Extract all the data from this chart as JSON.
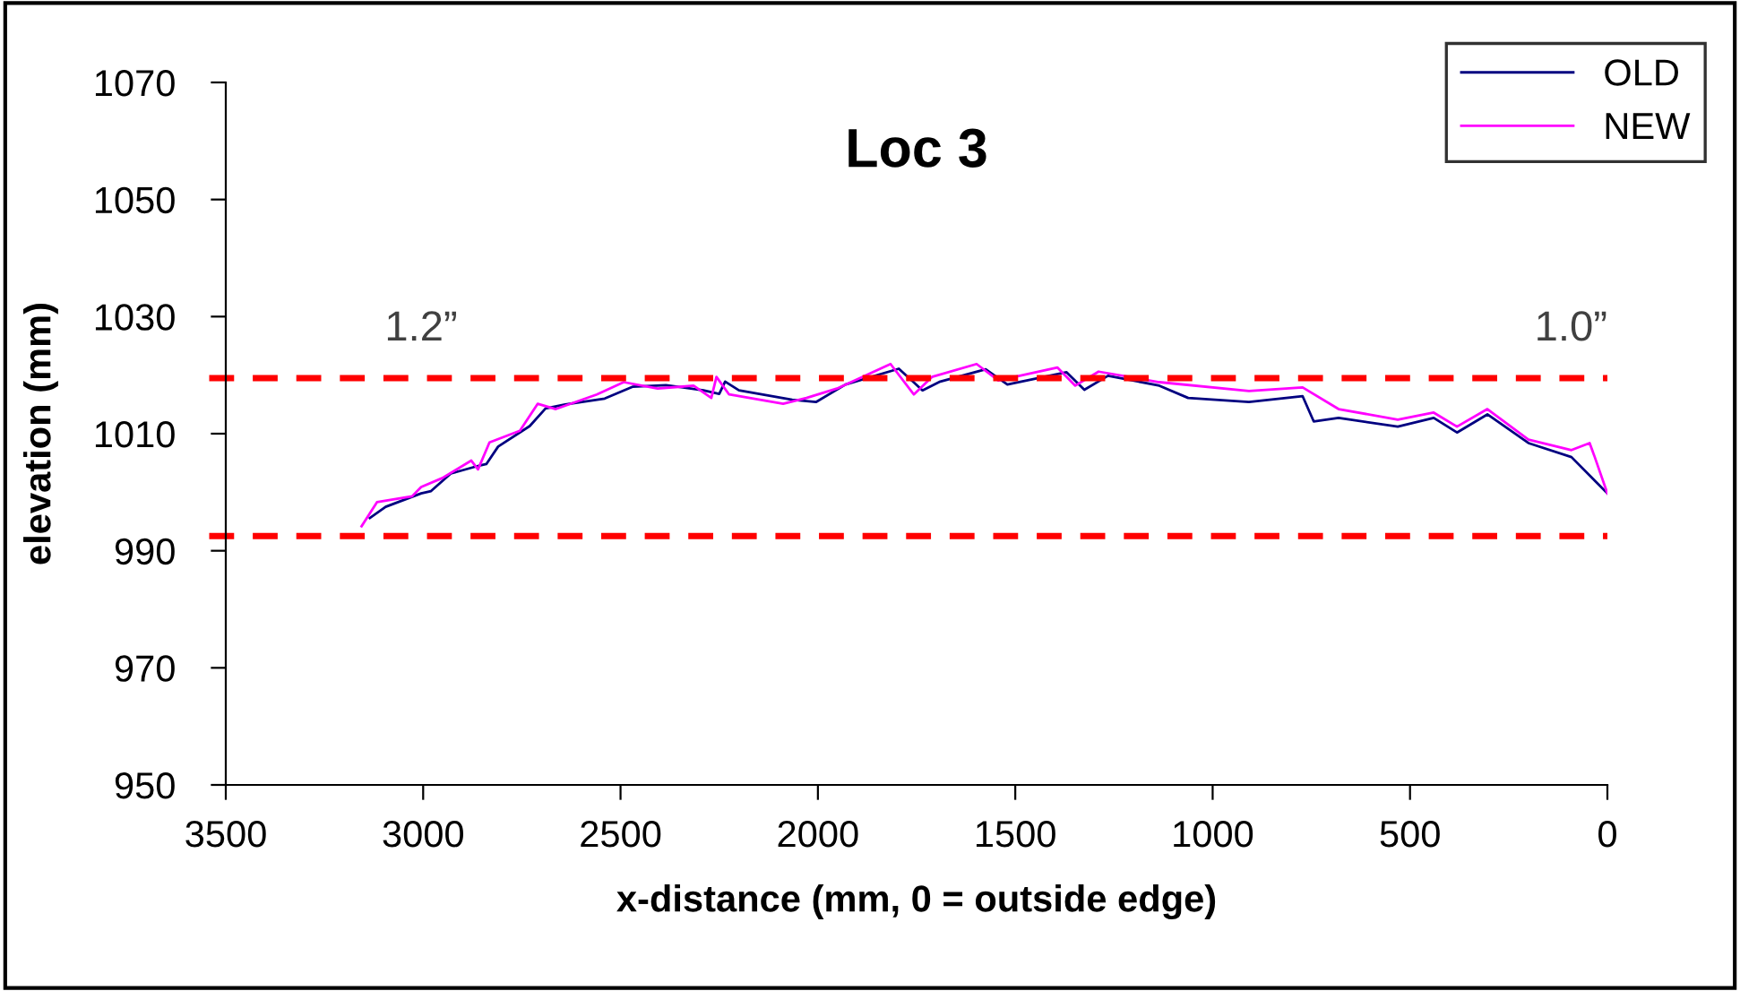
{
  "chart_data": {
    "type": "line",
    "title": "Loc 3",
    "xlabel": "x-distance (mm, 0 = outside edge)",
    "ylabel": "elevation (mm)",
    "xlim": [
      3500,
      0
    ],
    "xticks": [
      3500,
      3000,
      2500,
      2000,
      1500,
      1000,
      500,
      0
    ],
    "ylim": [
      950,
      1070
    ],
    "yticks": [
      950,
      970,
      990,
      1010,
      1030,
      1050,
      1070
    ],
    "legend": "top right",
    "grid": false,
    "ref_lines": [
      {
        "axis": "y",
        "value": 1019.5,
        "color": "#ff0000",
        "line_style": "dashed"
      },
      {
        "axis": "y",
        "value": 992.5,
        "color": "#ff0000",
        "line_style": "dashed"
      }
    ],
    "annotations": [
      "1.2”",
      "1.0”"
    ],
    "series": [
      {
        "name": "OLD",
        "color": "#000080",
        "x": [
          3135,
          3095,
          3005,
          2980,
          2930,
          2855,
          2840,
          2810,
          2730,
          2690,
          2640,
          2540,
          2470,
          2385,
          2290,
          2250,
          2235,
          2200,
          2065,
          2005,
          1930,
          1795,
          1735,
          1690,
          1575,
          1520,
          1370,
          1325,
          1265,
          1135,
          1062,
          908,
          772,
          744,
          681,
          531,
          440,
          381,
          304,
          200,
          91,
          0
        ],
        "values": [
          995.6,
          997.5,
          999.8,
          1000.2,
          1003.2,
          1004.6,
          1004.8,
          1007.8,
          1011.3,
          1014.3,
          1015.0,
          1016.0,
          1018.0,
          1018.3,
          1017.4,
          1016.8,
          1018.9,
          1017.4,
          1015.8,
          1015.4,
          1018.4,
          1021.1,
          1017.4,
          1018.9,
          1021.0,
          1018.4,
          1020.5,
          1017.5,
          1019.9,
          1018.2,
          1016.1,
          1015.4,
          1016.4,
          1012.1,
          1012.7,
          1011.2,
          1012.7,
          1010.2,
          1013.3,
          1008.4,
          1006.0,
          999.8
        ]
      },
      {
        "name": "NEW",
        "color": "#ff00ff",
        "x": [
          3156,
          3117,
          3028,
          3005,
          2952,
          2878,
          2861,
          2832,
          2755,
          2710,
          2664,
          2560,
          2492,
          2406,
          2315,
          2270,
          2257,
          2225,
          2088,
          2029,
          1952,
          1816,
          1757,
          1711,
          1598,
          1543,
          1393,
          1348,
          1289,
          1135,
          908,
          772,
          681,
          531,
          440,
          381,
          304,
          200,
          91,
          45,
          32,
          0
        ],
        "values": [
          994.2,
          998.3,
          999.3,
          1000.9,
          1002.4,
          1005.4,
          1003.9,
          1008.5,
          1010.5,
          1015.1,
          1014.2,
          1016.7,
          1018.8,
          1017.7,
          1018.2,
          1016.1,
          1019.7,
          1016.7,
          1015.1,
          1016.1,
          1017.7,
          1021.9,
          1016.7,
          1019.7,
          1021.9,
          1019.1,
          1021.3,
          1018.2,
          1020.6,
          1018.8,
          1017.3,
          1017.9,
          1014.2,
          1012.4,
          1013.6,
          1011.2,
          1014.2,
          1009.0,
          1007.2,
          1008.4,
          1006.0,
          999.8
        ]
      }
    ]
  }
}
